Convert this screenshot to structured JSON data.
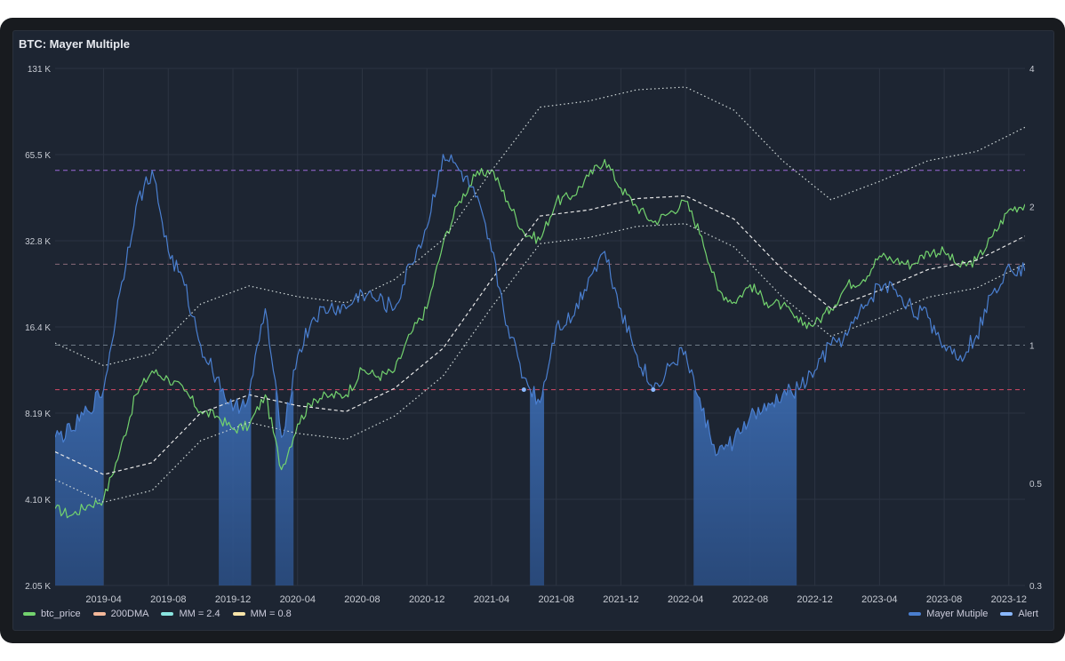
{
  "panel": {
    "title": "BTC: Mayer Multiple"
  },
  "legend_left": [
    {
      "label": "btc_price",
      "color": "#73d36e"
    },
    {
      "label": "200DMA",
      "color": "#f4b89a"
    },
    {
      "label": "MM = 2.4",
      "color": "#8ae5e0"
    },
    {
      "label": "MM = 0.8",
      "color": "#f7e4a8"
    }
  ],
  "legend_right": [
    {
      "label": "Mayer Mutiple",
      "color": "#4a7fd0"
    },
    {
      "label": "Alert",
      "color": "#8ab8ff"
    }
  ],
  "chart_data": {
    "type": "line",
    "title": "BTC: Mayer Multiple",
    "x_ticks": [
      "2019-04",
      "2019-08",
      "2019-12",
      "2020-04",
      "2020-08",
      "2020-12",
      "2021-04",
      "2021-08",
      "2021-12",
      "2022-04",
      "2022-08",
      "2022-12",
      "2023-04",
      "2023-08",
      "2023-12"
    ],
    "x_range": [
      "2019-01",
      "2024-01"
    ],
    "y_left": {
      "scale": "log2",
      "ticks": [
        "2.05 K",
        "4.10 K",
        "8.19 K",
        "16.4 K",
        "32.8 K",
        "65.5 K",
        "131 K"
      ],
      "range": [
        2048,
        131072
      ]
    },
    "y_right": {
      "scale": "log",
      "ticks": [
        "0.3",
        "0.5",
        "1",
        "2",
        "4"
      ],
      "range": [
        0.3,
        4
      ]
    },
    "threshold_lines_right_axis": [
      {
        "value": 2.4,
        "color": "#9c6ad8"
      },
      {
        "value": 1.5,
        "color": "#8a6a78"
      },
      {
        "value": 1.0,
        "color": "#6e7a86"
      },
      {
        "value": 0.8,
        "color": "#d24a66"
      }
    ],
    "series": [
      {
        "name": "btc_price",
        "axis": "left",
        "color": "#73d36e",
        "x": [
          "2019-01",
          "2019-02",
          "2019-03",
          "2019-04",
          "2019-05",
          "2019-06",
          "2019-07",
          "2019-08",
          "2019-09",
          "2019-10",
          "2019-11",
          "2019-12",
          "2020-01",
          "2020-02",
          "2020-03",
          "2020-04",
          "2020-05",
          "2020-06",
          "2020-07",
          "2020-08",
          "2020-09",
          "2020-10",
          "2020-11",
          "2020-12",
          "2021-01",
          "2021-02",
          "2021-03",
          "2021-04",
          "2021-05",
          "2021-06",
          "2021-07",
          "2021-08",
          "2021-09",
          "2021-10",
          "2021-11",
          "2021-12",
          "2022-01",
          "2022-02",
          "2022-03",
          "2022-04",
          "2022-05",
          "2022-06",
          "2022-07",
          "2022-08",
          "2022-09",
          "2022-10",
          "2022-11",
          "2022-12",
          "2023-01",
          "2023-02",
          "2023-03",
          "2023-04",
          "2023-05",
          "2023-06",
          "2023-07",
          "2023-08",
          "2023-09",
          "2023-10",
          "2023-11",
          "2023-12",
          "2024-01"
        ],
        "values": [
          3800,
          3600,
          3900,
          4100,
          6000,
          9500,
          11500,
          10800,
          9800,
          8300,
          8000,
          7200,
          7400,
          9500,
          5200,
          7500,
          9200,
          9400,
          9500,
          11600,
          11000,
          11500,
          15500,
          19000,
          32000,
          45000,
          55000,
          58000,
          45000,
          35000,
          33000,
          45000,
          47000,
          55000,
          63000,
          50000,
          43000,
          38000,
          41000,
          45000,
          34000,
          22000,
          20000,
          23000,
          20000,
          19500,
          17000,
          16800,
          19000,
          23000,
          24000,
          29000,
          28000,
          27000,
          30000,
          30000,
          26500,
          28000,
          34000,
          42000,
          44000
        ]
      },
      {
        "name": "200DMA",
        "axis": "left",
        "color": "#e8e8e8",
        "x": [
          "2019-01",
          "2019-04",
          "2019-07",
          "2019-10",
          "2020-01",
          "2020-04",
          "2020-07",
          "2020-10",
          "2021-01",
          "2021-04",
          "2021-07",
          "2021-10",
          "2022-01",
          "2022-04",
          "2022-07",
          "2022-10",
          "2023-01",
          "2023-04",
          "2023-07",
          "2023-10",
          "2024-01"
        ],
        "values": [
          6000,
          5000,
          5500,
          8200,
          9500,
          8700,
          8300,
          10000,
          13800,
          24000,
          40000,
          42000,
          46000,
          47000,
          39000,
          26000,
          19000,
          22000,
          26000,
          28000,
          34000
        ]
      },
      {
        "name": "MM = 2.4",
        "axis": "left",
        "color": "#cfd8d8",
        "x": [
          "2019-01",
          "2019-04",
          "2019-07",
          "2019-10",
          "2020-01",
          "2020-04",
          "2020-07",
          "2020-10",
          "2021-01",
          "2021-04",
          "2021-07",
          "2021-10",
          "2022-01",
          "2022-04",
          "2022-07",
          "2022-10",
          "2023-01",
          "2023-04",
          "2023-07",
          "2023-10",
          "2024-01"
        ],
        "values": [
          14400,
          12000,
          13200,
          19700,
          22800,
          20900,
          19900,
          24000,
          33100,
          57600,
          96000,
          100800,
          110400,
          112800,
          93600,
          62400,
          45600,
          52800,
          62400,
          67200,
          81600
        ]
      },
      {
        "name": "MM = 0.8",
        "axis": "left",
        "color": "#cfd8d8",
        "x": [
          "2019-01",
          "2019-04",
          "2019-07",
          "2019-10",
          "2020-01",
          "2020-04",
          "2020-07",
          "2020-10",
          "2021-01",
          "2021-04",
          "2021-07",
          "2021-10",
          "2022-01",
          "2022-04",
          "2022-07",
          "2022-10",
          "2023-01",
          "2023-04",
          "2023-07",
          "2023-10",
          "2024-01"
        ],
        "values": [
          4800,
          4000,
          4400,
          6560,
          7600,
          6960,
          6640,
          8000,
          11040,
          19200,
          32000,
          33600,
          36800,
          37600,
          31200,
          20800,
          15200,
          17600,
          20800,
          22400,
          27200
        ]
      },
      {
        "name": "Mayer Mutiple",
        "axis": "right",
        "color": "#4a7fd0",
        "x": [
          "2019-01",
          "2019-02",
          "2019-03",
          "2019-04",
          "2019-05",
          "2019-06",
          "2019-07",
          "2019-08",
          "2019-09",
          "2019-10",
          "2019-11",
          "2019-12",
          "2020-01",
          "2020-02",
          "2020-03",
          "2020-04",
          "2020-05",
          "2020-06",
          "2020-07",
          "2020-08",
          "2020-09",
          "2020-10",
          "2020-11",
          "2020-12",
          "2021-01",
          "2021-02",
          "2021-03",
          "2021-04",
          "2021-05",
          "2021-06",
          "2021-07",
          "2021-08",
          "2021-09",
          "2021-10",
          "2021-11",
          "2021-12",
          "2022-01",
          "2022-02",
          "2022-03",
          "2022-04",
          "2022-05",
          "2022-06",
          "2022-07",
          "2022-08",
          "2022-09",
          "2022-10",
          "2022-11",
          "2022-12",
          "2023-01",
          "2023-02",
          "2023-03",
          "2023-04",
          "2023-05",
          "2023-06",
          "2023-07",
          "2023-08",
          "2023-09",
          "2023-10",
          "2023-11",
          "2023-12",
          "2024-01"
        ],
        "values": [
          0.63,
          0.65,
          0.72,
          0.8,
          1.3,
          2.0,
          2.4,
          1.6,
          1.35,
          1.0,
          0.85,
          0.72,
          0.78,
          1.2,
          0.63,
          0.95,
          1.15,
          1.2,
          1.2,
          1.3,
          1.25,
          1.2,
          1.5,
          1.8,
          2.6,
          2.4,
          2.1,
          1.6,
          1.1,
          0.85,
          0.75,
          1.1,
          1.15,
          1.4,
          1.6,
          1.2,
          0.95,
          0.8,
          0.9,
          0.97,
          0.72,
          0.58,
          0.62,
          0.7,
          0.72,
          0.78,
          0.8,
          0.88,
          1.0,
          1.05,
          1.2,
          1.35,
          1.32,
          1.2,
          1.15,
          1.0,
          0.95,
          1.05,
          1.3,
          1.5,
          1.45
        ]
      },
      {
        "name": "Alert",
        "axis": "right",
        "color": "#8ab8ff",
        "x": [
          "2021-06",
          "2022-02"
        ],
        "values": [
          0.8,
          0.8
        ]
      }
    ]
  }
}
